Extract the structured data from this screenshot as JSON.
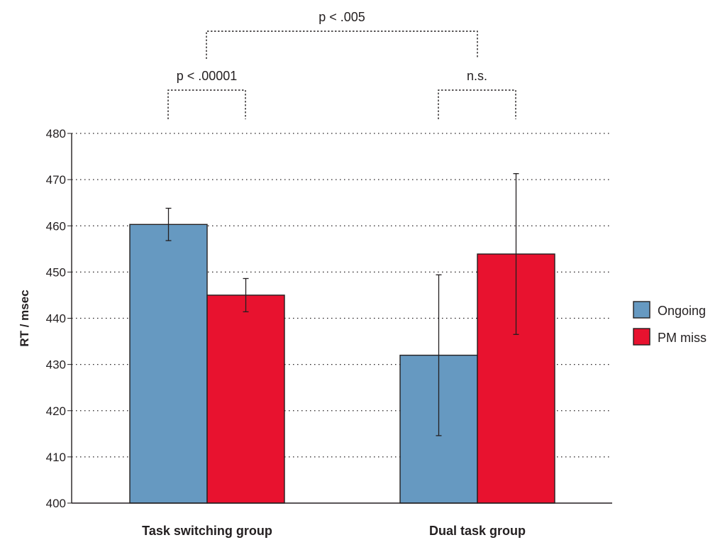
{
  "chart_data": {
    "type": "bar",
    "categories": [
      "Task switching group",
      "Dual task group"
    ],
    "series": [
      {
        "name": "Ongoing",
        "color": "#6699c1",
        "values": [
          460.3,
          432.0
        ],
        "error": [
          3.5,
          17.4
        ]
      },
      {
        "name": "PM miss",
        "color": "#e8122f",
        "values": [
          445.0,
          453.9
        ],
        "error": [
          3.6,
          17.4
        ]
      }
    ],
    "ylabel": "RT / msec",
    "xlabel": "",
    "ylim": [
      400,
      480
    ],
    "yticks": [
      400,
      410,
      420,
      430,
      440,
      450,
      460,
      470,
      480
    ],
    "grid": true,
    "legend_position": "right",
    "annotations": [
      {
        "label": "p < .00001",
        "type": "within-group",
        "category": 0
      },
      {
        "label": "n.s.",
        "type": "within-group",
        "category": 1
      },
      {
        "label": "p < .005",
        "type": "between-groups"
      }
    ]
  }
}
